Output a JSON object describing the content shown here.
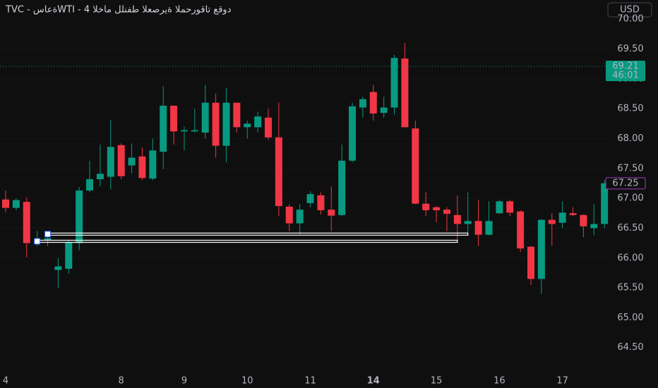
{
  "chart_data": {
    "type": "candlestick",
    "title": "TVC - ةعاسWTI - 4 دوقع تاقورحملا ةيرصعلا طفنلل ماخلا",
    "currency_button": "USD",
    "categories": [
      "4",
      null,
      null,
      null,
      null,
      null,
      null,
      null,
      null,
      null,
      null,
      "8",
      null,
      null,
      null,
      null,
      null,
      "9",
      null,
      null,
      null,
      null,
      null,
      "10",
      null,
      null,
      null,
      null,
      null,
      "11",
      null,
      null,
      null,
      null,
      null,
      "14",
      null,
      null,
      null,
      null,
      null,
      "15",
      null,
      null,
      null,
      null,
      null,
      "16",
      null,
      null,
      null,
      null,
      null,
      "17",
      null,
      null,
      null,
      null
    ],
    "open": [
      66.98,
      66.84,
      66.94,
      66.27,
      66.3,
      65.8,
      65.82,
      66.25,
      67.13,
      67.32,
      67.36,
      67.89,
      67.55,
      67.7,
      67.33,
      67.78,
      68.55,
      68.12,
      68.12,
      68.1,
      68.6,
      67.88,
      68.6,
      68.19,
      68.19,
      68.35,
      68.02,
      66.86,
      66.58,
      66.92,
      67.05,
      66.81,
      66.72,
      67.63,
      68.52,
      68.78,
      68.43,
      68.52,
      69.34,
      68.17,
      66.91,
      66.85,
      66.81,
      66.72,
      66.57,
      66.62,
      66.39,
      66.75,
      66.95,
      66.78,
      66.19,
      65.65,
      66.64,
      66.59,
      66.75,
      66.72,
      66.5,
      66.57
    ],
    "high": [
      67.13,
      67.0,
      67.01,
      66.45,
      66.42,
      66.0,
      66.3,
      67.19,
      67.63,
      67.9,
      68.31,
      67.92,
      67.92,
      67.85,
      68.0,
      68.88,
      68.55,
      68.2,
      68.5,
      68.9,
      68.75,
      68.85,
      68.6,
      68.3,
      68.45,
      68.5,
      68.6,
      66.9,
      66.9,
      67.12,
      67.1,
      67.2,
      67.9,
      68.6,
      68.7,
      68.9,
      68.7,
      69.4,
      69.6,
      68.3,
      67.1,
      66.87,
      66.85,
      67.05,
      67.1,
      66.97,
      66.95,
      66.97,
      66.97,
      66.8,
      66.2,
      66.65,
      66.75,
      66.95,
      66.85,
      66.73,
      66.9,
      67.3
    ],
    "low": [
      66.77,
      66.8,
      66.01,
      66.2,
      66.2,
      65.5,
      65.74,
      66.13,
      67.1,
      67.2,
      67.15,
      67.32,
      67.42,
      67.3,
      67.3,
      67.49,
      67.9,
      67.8,
      68.1,
      68.0,
      67.68,
      67.6,
      68.1,
      68.0,
      68.1,
      67.98,
      66.7,
      66.45,
      66.4,
      66.85,
      66.73,
      66.45,
      66.7,
      67.6,
      68.35,
      68.3,
      68.35,
      68.4,
      68.19,
      66.9,
      66.7,
      66.6,
      66.45,
      66.27,
      66.4,
      66.2,
      66.38,
      66.74,
      66.7,
      66.1,
      65.55,
      65.4,
      66.2,
      66.5,
      66.7,
      66.35,
      66.38,
      66.5
    ],
    "close": [
      66.84,
      66.97,
      66.25,
      66.29,
      66.33,
      65.86,
      66.26,
      67.13,
      67.32,
      67.41,
      67.86,
      67.37,
      67.68,
      67.34,
      67.8,
      68.55,
      68.12,
      68.14,
      68.14,
      68.6,
      67.88,
      68.6,
      68.19,
      68.25,
      68.37,
      68.02,
      66.87,
      66.58,
      66.81,
      67.07,
      66.8,
      66.71,
      67.63,
      68.54,
      68.66,
      68.42,
      68.52,
      69.35,
      68.19,
      66.91,
      66.8,
      66.8,
      66.74,
      66.57,
      66.62,
      66.39,
      66.62,
      66.95,
      66.76,
      66.16,
      65.65,
      66.64,
      66.57,
      66.76,
      66.72,
      66.53,
      66.57,
      67.25
    ],
    "up_color": "#089981",
    "down_color": "#f23645",
    "ylim": [
      64.06,
      70.32
    ],
    "yticks": [
      {
        "value": 64.5,
        "label": "64.50"
      },
      {
        "value": 65,
        "label": "65.00"
      },
      {
        "value": 65.5,
        "label": "65.50"
      },
      {
        "value": 66,
        "label": "66.00"
      },
      {
        "value": 66.5,
        "label": "66.50"
      },
      {
        "value": 67,
        "label": "67.00"
      },
      {
        "value": 67.5,
        "label": "67.50"
      },
      {
        "value": 68,
        "label": "68.00"
      },
      {
        "value": 68.5,
        "label": "68.50"
      },
      {
        "value": 69,
        "label": "69.00"
      },
      {
        "value": 69.5,
        "label": "69.50"
      },
      {
        "value": 70,
        "label": "70.00"
      }
    ],
    "grid": true,
    "levels": [
      {
        "y": 66.4,
        "x_start": 4,
        "x_end": 44
      },
      {
        "y": 66.28,
        "x_start": 3,
        "x_end": 43
      }
    ],
    "price_labels": [
      {
        "value": 69.21,
        "countdown": "46:01",
        "color": "#089981"
      },
      {
        "value": 67.25,
        "color": "#a33bbf"
      }
    ]
  }
}
